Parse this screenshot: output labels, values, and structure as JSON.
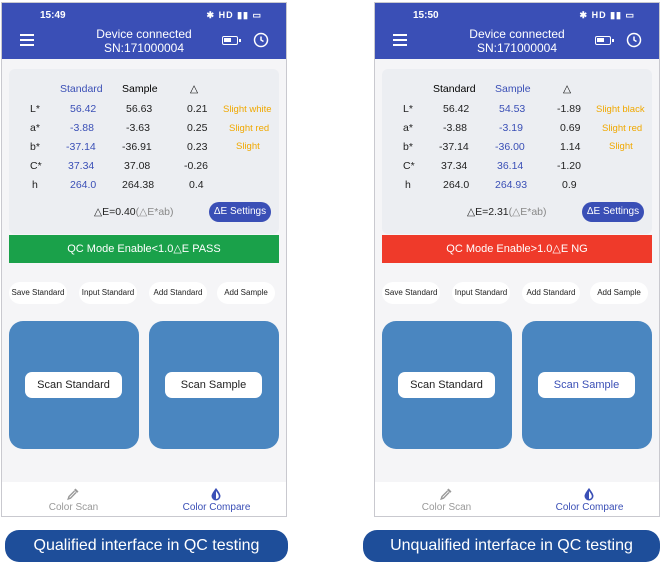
{
  "phones": [
    {
      "time": "15:49",
      "status_icons": "✱ HD ▮▮ ▭",
      "title_line1": "Device connected",
      "title_line2": "SN:171000004",
      "headers": {
        "standard": "Standard",
        "sample": "Sample",
        "delta": "△"
      },
      "rows": [
        {
          "label": "L*",
          "standard": "56.42",
          "sample": "56.63",
          "delta": "0.21",
          "note": "Slight white"
        },
        {
          "label": "a*",
          "standard": "-3.88",
          "sample": "-3.63",
          "delta": "0.25",
          "note": "Slight red"
        },
        {
          "label": "b*",
          "standard": "-37.14",
          "sample": "-36.91",
          "delta": "0.23",
          "note": "Slight"
        },
        {
          "label": "C*",
          "standard": "37.34",
          "sample": "37.08",
          "delta": "-0.26",
          "note": ""
        },
        {
          "label": "h",
          "standard": "264.0",
          "sample": "264.38",
          "delta": "0.4",
          "note": ""
        }
      ],
      "delta_e_value": "△E=0.40",
      "delta_e_unit": "(△E*ab)",
      "delta_e_button": "ΔE Settings",
      "qc_banner": "QC Mode Enable<1.0△E   PASS",
      "qc_status_color": "#1aa14a",
      "action_buttons": [
        "Save Standard",
        "Input Standard",
        "Add Standard",
        "Add Sample"
      ],
      "scan_standard": "Scan Standard",
      "scan_sample": "Scan Sample",
      "nav": {
        "color_scan": "Color Scan",
        "color_compare": "Color Compare"
      },
      "caption": "Qualified interface in QC testing"
    },
    {
      "time": "15:50",
      "status_icons": "✱ HD ▮▮ ▭",
      "title_line1": "Device connected",
      "title_line2": "SN:171000004",
      "headers": {
        "standard": "Standard",
        "sample": "Sample",
        "delta": "△"
      },
      "rows": [
        {
          "label": "L*",
          "standard": "56.42",
          "sample": "54.53",
          "delta": "-1.89",
          "note": "Slight black"
        },
        {
          "label": "a*",
          "standard": "-3.88",
          "sample": "-3.19",
          "delta": "0.69",
          "note": "Slight red"
        },
        {
          "label": "b*",
          "standard": "-37.14",
          "sample": "-36.00",
          "delta": "1.14",
          "note": "Slight"
        },
        {
          "label": "C*",
          "standard": "37.34",
          "sample": "36.14",
          "delta": "-1.20",
          "note": ""
        },
        {
          "label": "h",
          "standard": "264.0",
          "sample": "264.93",
          "delta": "0.9",
          "note": ""
        }
      ],
      "delta_e_value": "△E=2.31",
      "delta_e_unit": "(△E*ab)",
      "delta_e_button": "ΔE Settings",
      "qc_banner": "QC Mode Enable>1.0△E   NG",
      "qc_status_color": "#ef3a2a",
      "action_buttons": [
        "Save Standard",
        "Input Standard",
        "Add Standard",
        "Add Sample"
      ],
      "scan_standard": "Scan Standard",
      "scan_sample": "Scan Sample",
      "nav": {
        "color_scan": "Color Scan",
        "color_compare": "Color Compare"
      },
      "caption": "Unqualified interface in QC testing"
    }
  ],
  "colors": {
    "appbar": "#3a4fb6",
    "accent_blue": "#3a4fb6",
    "note_orange": "#f0a800",
    "scan_tile": "#4a86c0",
    "caption_bg": "#1e4e9a"
  }
}
